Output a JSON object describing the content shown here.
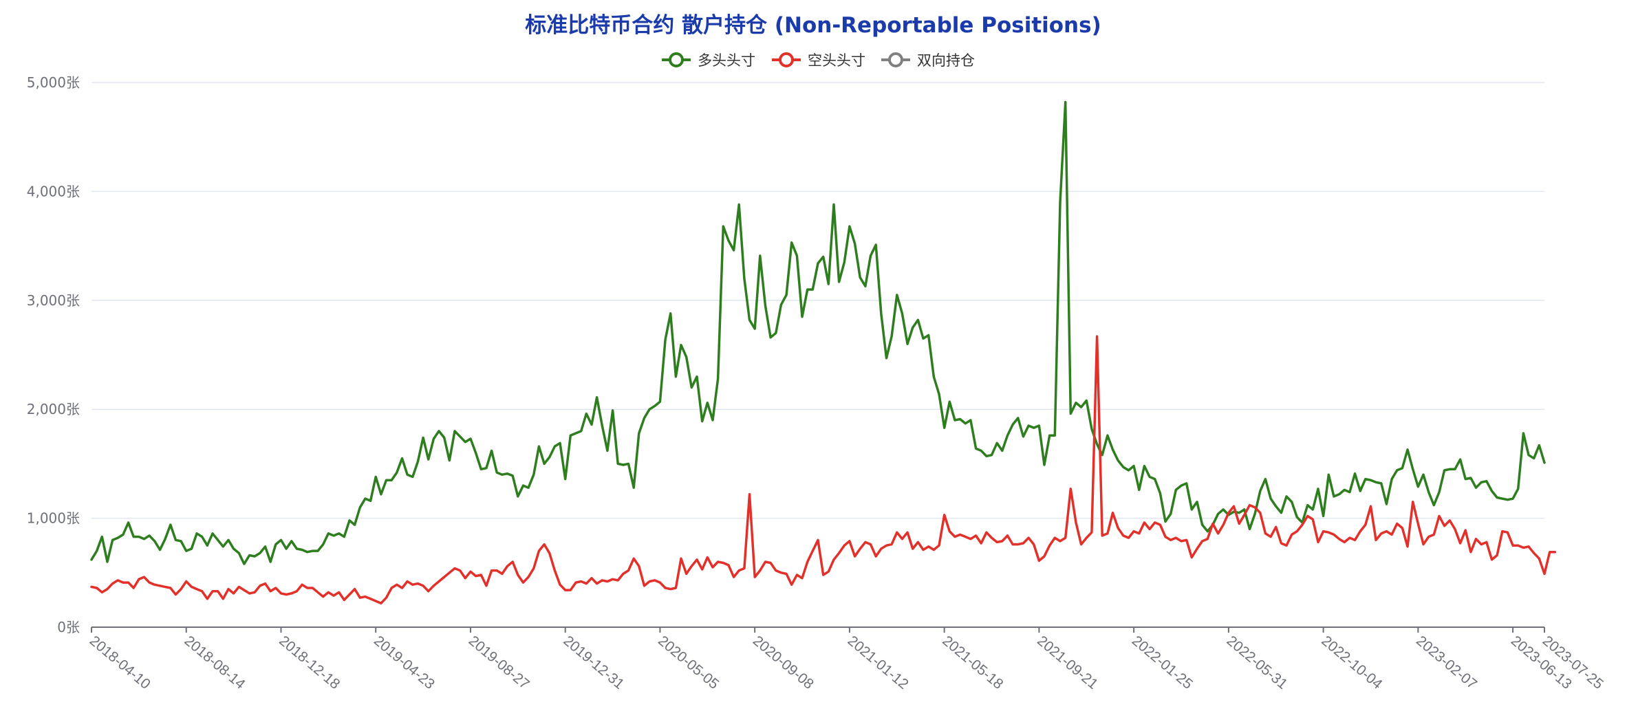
{
  "chart_data": {
    "type": "line",
    "title": "标准比特币合约 散户持仓 (Non-Reportable Positions)",
    "colors": {
      "long": "#2e7d1f",
      "short": "#e2302b",
      "spread": "#808080",
      "title": "#1c3bab"
    },
    "legend": [
      "多头头寸",
      "空头头寸",
      "双向持仓"
    ],
    "legend_position": "top-center",
    "y_unit": "张",
    "ylim": [
      0,
      5000
    ],
    "y_ticks": [
      "0张",
      "1,000张",
      "2,000张",
      "3,000张",
      "4,000张",
      "5,000张"
    ],
    "grid": true,
    "x_ticks": [
      "2018-04-10",
      "2018-08-14",
      "2018-12-18",
      "2019-04-23",
      "2019-08-27",
      "2019-12-31",
      "2020-05-05",
      "2020-09-08",
      "2021-01-12",
      "2021-05-18",
      "2021-09-21",
      "2022-01-25",
      "2022-05-31",
      "2022-10-04",
      "2023-02-07",
      "2023-06-13",
      "2023-07-25"
    ],
    "x_count": 277,
    "series": [
      {
        "name": "多头头寸",
        "color": "#2e7d1f",
        "values": [
          620,
          700,
          830,
          600,
          800,
          820,
          850,
          960,
          830,
          830,
          810,
          840,
          790,
          710,
          810,
          940,
          800,
          790,
          700,
          720,
          860,
          830,
          750,
          860,
          800,
          740,
          800,
          720,
          680,
          580,
          660,
          650,
          680,
          740,
          600,
          760,
          800,
          720,
          790,
          720,
          710,
          690,
          700,
          700,
          760,
          860,
          840,
          860,
          830,
          980,
          940,
          1100,
          1180,
          1160,
          1380,
          1220,
          1350,
          1350,
          1420,
          1550,
          1400,
          1380,
          1520,
          1740,
          1540,
          1730,
          1800,
          1740,
          1530,
          1800,
          1750,
          1700,
          1730,
          1600,
          1450,
          1460,
          1620,
          1420,
          1400,
          1410,
          1390,
          1200,
          1300,
          1280,
          1400,
          1660,
          1500,
          1560,
          1660,
          1690,
          1360,
          1760,
          1780,
          1800,
          1960,
          1860,
          2110,
          1850,
          1620,
          1990,
          1500,
          1490,
          1500,
          1280,
          1780,
          1920,
          2000,
          2030,
          2070,
          2640,
          2880,
          2300,
          2590,
          2480,
          2200,
          2300,
          1890,
          2060,
          1900,
          2280,
          3680,
          3550,
          3460,
          3880,
          3200,
          2820,
          2740,
          3410,
          2950,
          2660,
          2700,
          2960,
          3050,
          3530,
          3410,
          2850,
          3100,
          3100,
          3340,
          3400,
          3150,
          3880,
          3170,
          3350,
          3680,
          3520,
          3210,
          3130,
          3410,
          3510,
          2880,
          2470,
          2670,
          3050,
          2880,
          2600,
          2750,
          2820,
          2650,
          2680,
          2300,
          2140,
          1830,
          2070,
          1900,
          1910,
          1870,
          1900,
          1640,
          1620,
          1570,
          1580,
          1690,
          1620,
          1760,
          1860,
          1920,
          1750,
          1850,
          1830,
          1850,
          1490,
          1760,
          1760,
          3900,
          4820,
          1960,
          2060,
          2020,
          2080,
          1820,
          1680,
          1580,
          1760,
          1630,
          1530,
          1470,
          1440,
          1480,
          1260,
          1480,
          1380,
          1360,
          1230,
          970,
          1040,
          1260,
          1300,
          1320,
          1080,
          1150,
          940,
          880,
          940,
          1040,
          1080,
          1030,
          1060,
          1050,
          1080,
          900,
          1040,
          1250,
          1360,
          1180,
          1110,
          1050,
          1200,
          1150,
          1010,
          960,
          1120,
          1080,
          1270,
          1020,
          1400,
          1200,
          1220,
          1260,
          1240,
          1410,
          1250,
          1360,
          1350,
          1330,
          1320,
          1130,
          1360,
          1440,
          1460,
          1630,
          1450,
          1290,
          1400,
          1240,
          1120,
          1240,
          1440,
          1450,
          1450,
          1540,
          1360,
          1370,
          1280,
          1330,
          1340,
          1250,
          1190,
          1180,
          1170,
          1180,
          1270,
          1780,
          1580,
          1550,
          1670,
          1510
        ]
      },
      {
        "name": "空头头寸",
        "color": "#e2302b",
        "values": [
          370,
          360,
          320,
          350,
          400,
          430,
          410,
          410,
          360,
          440,
          460,
          410,
          390,
          380,
          370,
          360,
          300,
          350,
          420,
          370,
          350,
          330,
          260,
          330,
          330,
          260,
          350,
          310,
          370,
          340,
          310,
          320,
          380,
          400,
          330,
          360,
          310,
          300,
          310,
          330,
          390,
          360,
          360,
          320,
          280,
          320,
          290,
          320,
          250,
          300,
          350,
          270,
          280,
          260,
          240,
          220,
          270,
          360,
          390,
          360,
          420,
          390,
          400,
          380,
          330,
          380,
          420,
          460,
          500,
          540,
          520,
          450,
          510,
          470,
          480,
          380,
          520,
          520,
          490,
          560,
          600,
          480,
          410,
          460,
          540,
          700,
          760,
          680,
          520,
          390,
          340,
          340,
          410,
          420,
          400,
          450,
          400,
          430,
          420,
          440,
          430,
          490,
          520,
          630,
          560,
          380,
          420,
          430,
          410,
          360,
          350,
          360,
          630,
          490,
          560,
          620,
          530,
          640,
          550,
          600,
          590,
          570,
          460,
          520,
          540,
          1220,
          460,
          520,
          600,
          590,
          520,
          500,
          490,
          390,
          480,
          450,
          600,
          700,
          800,
          480,
          510,
          620,
          680,
          750,
          790,
          650,
          720,
          780,
          760,
          650,
          720,
          750,
          760,
          870,
          810,
          870,
          720,
          780,
          710,
          740,
          710,
          750,
          1030,
          880,
          830,
          850,
          830,
          810,
          840,
          770,
          870,
          820,
          780,
          790,
          840,
          760,
          760,
          770,
          820,
          760,
          610,
          650,
          750,
          820,
          790,
          820,
          1270,
          960,
          760,
          820,
          870,
          2670,
          840,
          860,
          1050,
          910,
          840,
          820,
          880,
          860,
          960,
          900,
          960,
          940,
          830,
          800,
          820,
          790,
          800,
          640,
          720,
          790,
          810,
          950,
          860,
          940,
          1050,
          1110,
          950,
          1030,
          1120,
          1100,
          1050,
          860,
          830,
          920,
          770,
          750,
          850,
          880,
          940,
          1020,
          990,
          780,
          880,
          870,
          850,
          810,
          780,
          820,
          800,
          880,
          940,
          1110,
          800,
          860,
          880,
          850,
          950,
          910,
          740,
          1150,
          950,
          760,
          830,
          850,
          1020,
          930,
          980,
          900,
          770,
          890,
          690,
          810,
          760,
          780,
          620,
          660,
          880,
          870,
          750,
          750,
          730,
          740,
          680,
          630,
          490,
          690,
          690
        ]
      },
      {
        "name": "双向持仓",
        "color": "#808080",
        "values": []
      }
    ]
  }
}
